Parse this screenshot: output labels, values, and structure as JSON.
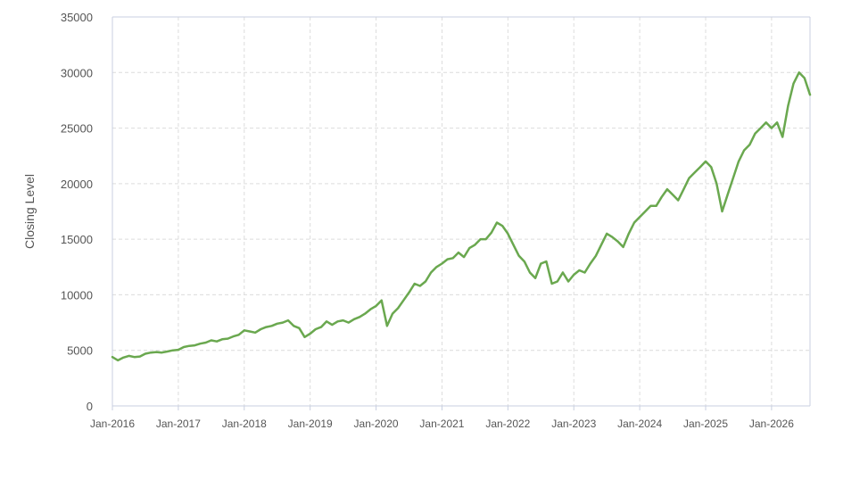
{
  "chart_data": {
    "type": "line",
    "title": "",
    "xlabel": "",
    "ylabel": "Closing Level",
    "ylim": [
      0,
      35000
    ],
    "y_ticks": [
      0,
      5000,
      10000,
      15000,
      20000,
      25000,
      30000,
      35000
    ],
    "y_tick_labels": [
      "0",
      "5000",
      "10000",
      "15000",
      "20000",
      "25000",
      "30000",
      "35000"
    ],
    "x_range": [
      "2016-01",
      "2026-08"
    ],
    "x_ticks": [
      "2016-01",
      "2017-01",
      "2018-01",
      "2019-01",
      "2020-01",
      "2021-01",
      "2022-01",
      "2023-01",
      "2024-01",
      "2025-01",
      "2026-01"
    ],
    "x_tick_labels": [
      "Jan-2016",
      "Jan-2017",
      "Jan-2018",
      "Jan-2019",
      "Jan-2020",
      "Jan-2021",
      "Jan-2022",
      "Jan-2023",
      "Jan-2024",
      "Jan-2025",
      "Jan-2026"
    ],
    "grid": true,
    "legend": "none",
    "line_color": "#6aa84f",
    "series": [
      {
        "x": [
          "2016-01",
          "2016-02",
          "2016-03",
          "2016-04",
          "2016-05",
          "2016-06",
          "2016-07",
          "2016-08",
          "2016-09",
          "2016-10",
          "2016-11",
          "2016-12",
          "2017-01",
          "2017-02",
          "2017-03",
          "2017-04",
          "2017-05",
          "2017-06",
          "2017-07",
          "2017-08",
          "2017-09",
          "2017-10",
          "2017-11",
          "2017-12",
          "2018-01",
          "2018-02",
          "2018-03",
          "2018-04",
          "2018-05",
          "2018-06",
          "2018-07",
          "2018-08",
          "2018-09",
          "2018-10",
          "2018-11",
          "2018-12",
          "2019-01",
          "2019-02",
          "2019-03",
          "2019-04",
          "2019-05",
          "2019-06",
          "2019-07",
          "2019-08",
          "2019-09",
          "2019-10",
          "2019-11",
          "2019-12",
          "2020-01",
          "2020-02",
          "2020-03",
          "2020-04",
          "2020-05",
          "2020-06",
          "2020-07",
          "2020-08",
          "2020-09",
          "2020-10",
          "2020-11",
          "2020-12",
          "2021-01",
          "2021-02",
          "2021-03",
          "2021-04",
          "2021-05",
          "2021-06",
          "2021-07",
          "2021-08",
          "2021-09",
          "2021-10",
          "2021-11",
          "2021-12",
          "2022-01",
          "2022-02",
          "2022-03",
          "2022-04",
          "2022-05",
          "2022-06",
          "2022-07",
          "2022-08",
          "2022-09",
          "2022-10",
          "2022-11",
          "2022-12",
          "2023-01",
          "2023-02",
          "2023-03",
          "2023-04",
          "2023-05",
          "2023-06",
          "2023-07",
          "2023-08",
          "2023-09",
          "2023-10",
          "2023-11",
          "2023-12",
          "2024-01",
          "2024-02",
          "2024-03",
          "2024-04",
          "2024-05",
          "2024-06",
          "2024-07",
          "2024-08",
          "2024-09",
          "2024-10",
          "2024-11",
          "2024-12",
          "2025-01",
          "2025-02",
          "2025-03",
          "2025-04",
          "2025-05",
          "2025-06",
          "2025-07",
          "2025-08",
          "2025-09",
          "2025-10",
          "2025-11",
          "2025-12",
          "2026-01",
          "2026-02",
          "2026-03",
          "2026-04",
          "2026-05",
          "2026-06",
          "2026-07",
          "2026-08"
        ],
        "y": [
          4400,
          4100,
          4350,
          4500,
          4400,
          4450,
          4700,
          4800,
          4850,
          4800,
          4900,
          5000,
          5050,
          5300,
          5400,
          5450,
          5600,
          5700,
          5900,
          5800,
          6000,
          6050,
          6250,
          6400,
          6800,
          6700,
          6600,
          6900,
          7100,
          7200,
          7400,
          7500,
          7700,
          7200,
          7000,
          6200,
          6500,
          6900,
          7100,
          7600,
          7300,
          7600,
          7700,
          7500,
          7800,
          8000,
          8300,
          8700,
          9000,
          9500,
          7200,
          8300,
          8800,
          9500,
          10200,
          11000,
          10800,
          11200,
          12000,
          12500,
          12800,
          13200,
          13300,
          13800,
          13400,
          14200,
          14500,
          15000,
          15000,
          15600,
          16500,
          16200,
          15500,
          14500,
          13500,
          13000,
          12000,
          11500,
          12800,
          13000,
          11000,
          11200,
          12000,
          11200,
          11800,
          12200,
          12000,
          12800,
          13500,
          14500,
          15500,
          15200,
          14800,
          14300,
          15500,
          16500,
          17000,
          17500,
          18000,
          18000,
          18800,
          19500,
          19000,
          18500,
          19500,
          20500,
          21000,
          21500,
          22000,
          21500,
          20000,
          17500,
          19000,
          20500,
          22000,
          23000,
          23500,
          24500,
          25000,
          25500,
          25000,
          25500,
          24200,
          27000,
          29000,
          30000,
          29500,
          28000
        ]
      }
    ]
  }
}
